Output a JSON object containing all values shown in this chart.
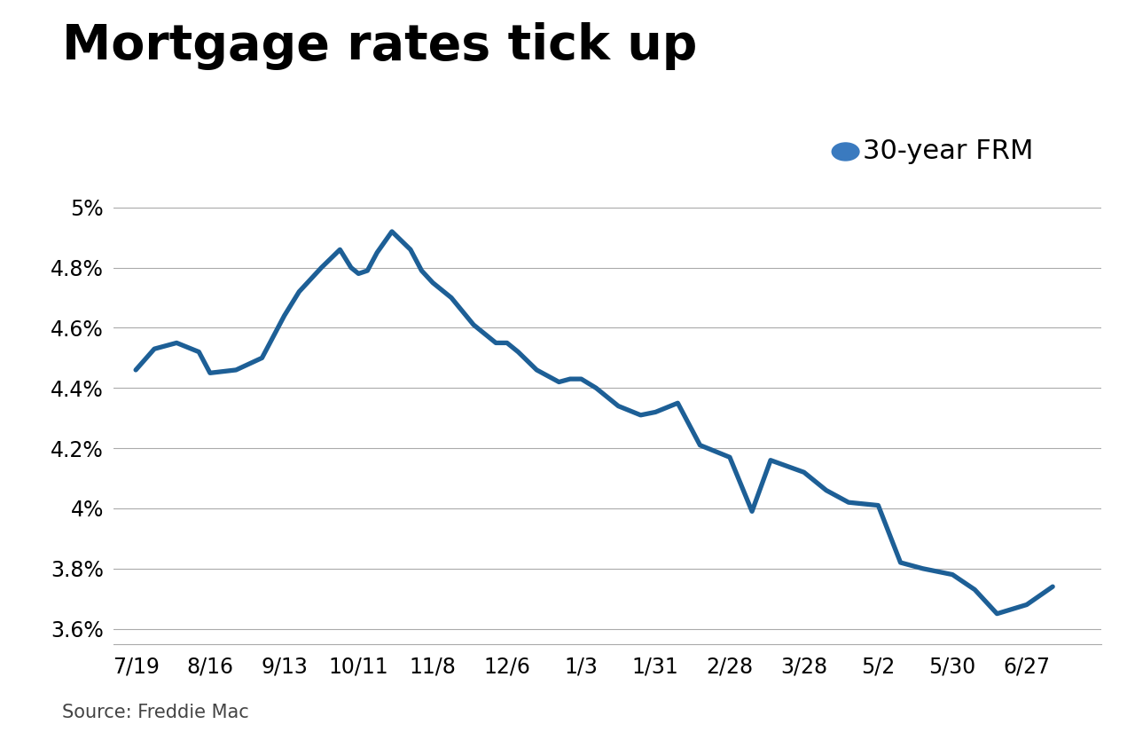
{
  "title": "Mortgage rates tick up",
  "source": "Source: Freddie Mac",
  "legend_label": "30-year FRM",
  "line_color": "#1d5f96",
  "legend_dot_color": "#3a7abf",
  "background_color": "#ffffff",
  "x_labels": [
    "7/19",
    "8/16",
    "9/13",
    "10/11",
    "11/8",
    "12/6",
    "1/3",
    "1/31",
    "2/28",
    "3/28",
    "5/2",
    "5/30",
    "6/27"
  ],
  "x_values": [
    0,
    1,
    2,
    3,
    4,
    5,
    6,
    7,
    8,
    9,
    10,
    11,
    12
  ],
  "x_fine": [
    0,
    0.25,
    0.55,
    0.85,
    1.0,
    1.35,
    1.7,
    2.0,
    2.2,
    2.5,
    2.75,
    2.9,
    3.0,
    3.12,
    3.25,
    3.45,
    3.7,
    3.85,
    4.0,
    4.25,
    4.55,
    4.85,
    5.0,
    5.15,
    5.4,
    5.7,
    5.85,
    6.0,
    6.2,
    6.5,
    6.8,
    7.0,
    7.3,
    7.6,
    8.0,
    8.3,
    8.55,
    9.0,
    9.3,
    9.6,
    10.0,
    10.3,
    10.6,
    11.0,
    11.3,
    11.6,
    12.0,
    12.35
  ],
  "y_fine": [
    4.46,
    4.53,
    4.55,
    4.52,
    4.45,
    4.46,
    4.5,
    4.64,
    4.72,
    4.8,
    4.86,
    4.8,
    4.78,
    4.79,
    4.85,
    4.92,
    4.86,
    4.79,
    4.75,
    4.7,
    4.61,
    4.55,
    4.55,
    4.52,
    4.46,
    4.42,
    4.43,
    4.43,
    4.4,
    4.34,
    4.31,
    4.32,
    4.35,
    4.21,
    4.17,
    3.99,
    4.16,
    4.12,
    4.06,
    4.02,
    4.01,
    3.82,
    3.8,
    3.78,
    3.73,
    3.65,
    3.68,
    3.74
  ],
  "ylim": [
    3.55,
    5.05
  ],
  "yticks": [
    3.6,
    3.8,
    4.0,
    4.2,
    4.4,
    4.6,
    4.8,
    5.0
  ],
  "ytick_labels": [
    "3.6%",
    "3.8%",
    "4%",
    "4.2%",
    "4.4%",
    "4.6%",
    "4.8%",
    "5%"
  ],
  "grid_color": "#aaaaaa",
  "line_width": 3.8,
  "title_fontsize": 40,
  "axis_fontsize": 17,
  "legend_fontsize": 22,
  "source_fontsize": 15
}
